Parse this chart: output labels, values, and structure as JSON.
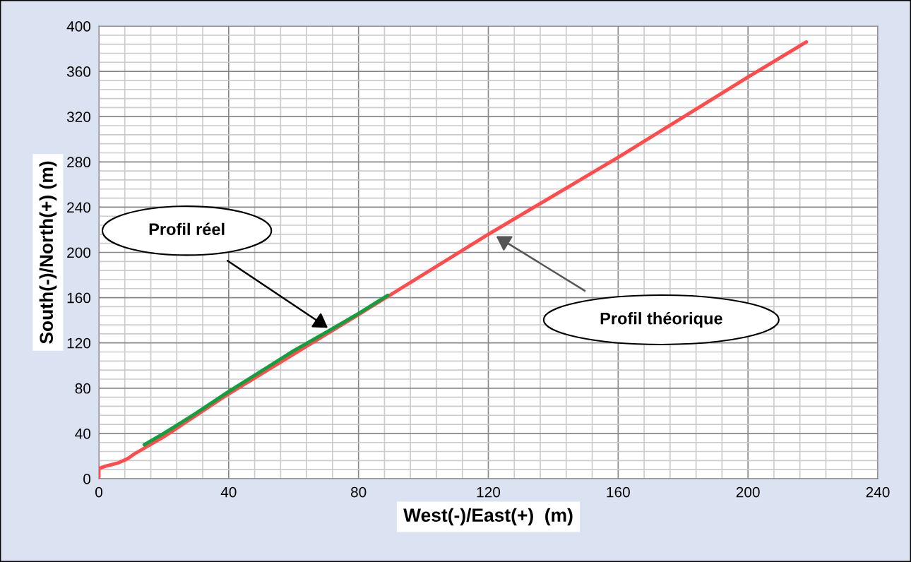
{
  "chart_data": {
    "type": "line",
    "xlabel": "West(-)/East(+)  (m)",
    "ylabel": "South(-)/North(+) (m)",
    "xlim": [
      0,
      240
    ],
    "xticks": [
      0,
      40,
      80,
      120,
      160,
      200,
      240
    ],
    "ylim": [
      0,
      400
    ],
    "yticks": [
      0,
      40,
      80,
      120,
      160,
      200,
      240,
      280,
      320,
      360,
      400
    ],
    "grid": true,
    "legend": false,
    "marker": "none",
    "line_style": "solid",
    "series": [
      {
        "color": "#ff4b4b",
        "x": [
          0,
          0,
          2,
          6,
          8,
          9,
          11,
          14,
          20,
          30,
          40,
          60,
          80,
          89,
          120,
          160,
          200,
          218
        ],
        "values": [
          0,
          9,
          11,
          14,
          16.5,
          18,
          22,
          27,
          37,
          56,
          75,
          110,
          145,
          161,
          216,
          284,
          355,
          386
        ]
      },
      {
        "color": "#10a040",
        "x": [
          14,
          20,
          30,
          40,
          50,
          60,
          71,
          80,
          89
        ],
        "values": [
          30,
          40,
          58,
          77,
          95,
          113,
          131,
          146,
          162
        ]
      }
    ],
    "annotations": [
      "Profil réel",
      "Profil théorique"
    ]
  }
}
